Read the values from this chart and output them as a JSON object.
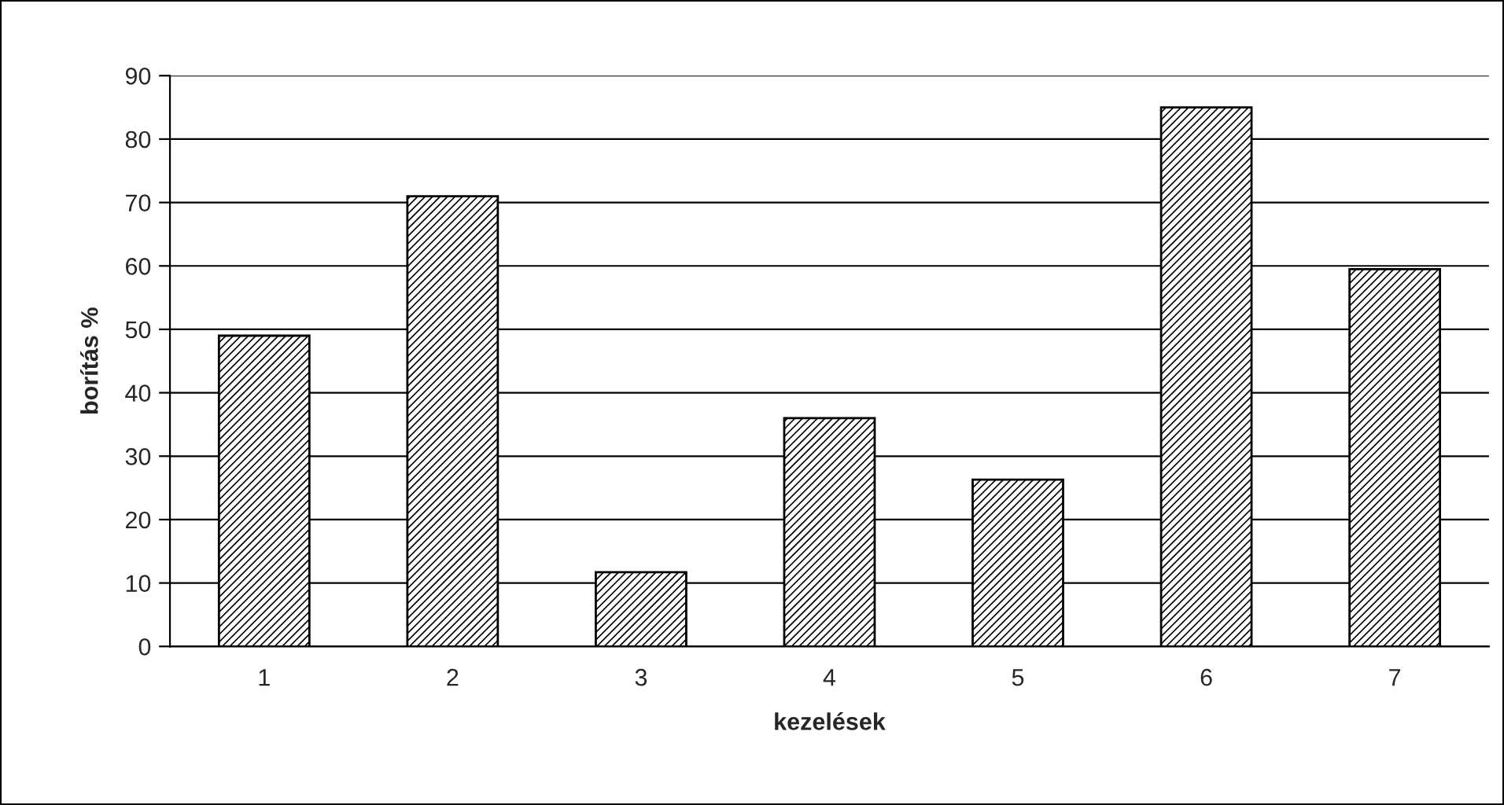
{
  "chart_data": {
    "type": "bar",
    "xlabel": "kezelések",
    "ylabel": "borítás %",
    "categories": [
      "1",
      "2",
      "3",
      "4",
      "5",
      "6",
      "7"
    ],
    "values": [
      49,
      71,
      11.7,
      36,
      26.3,
      85,
      59.5
    ],
    "color": "#000000",
    "ylim": [
      0,
      90
    ],
    "yticks": [
      0,
      10,
      20,
      30,
      40,
      50,
      60,
      70,
      80,
      90
    ],
    "grid": "y"
  }
}
